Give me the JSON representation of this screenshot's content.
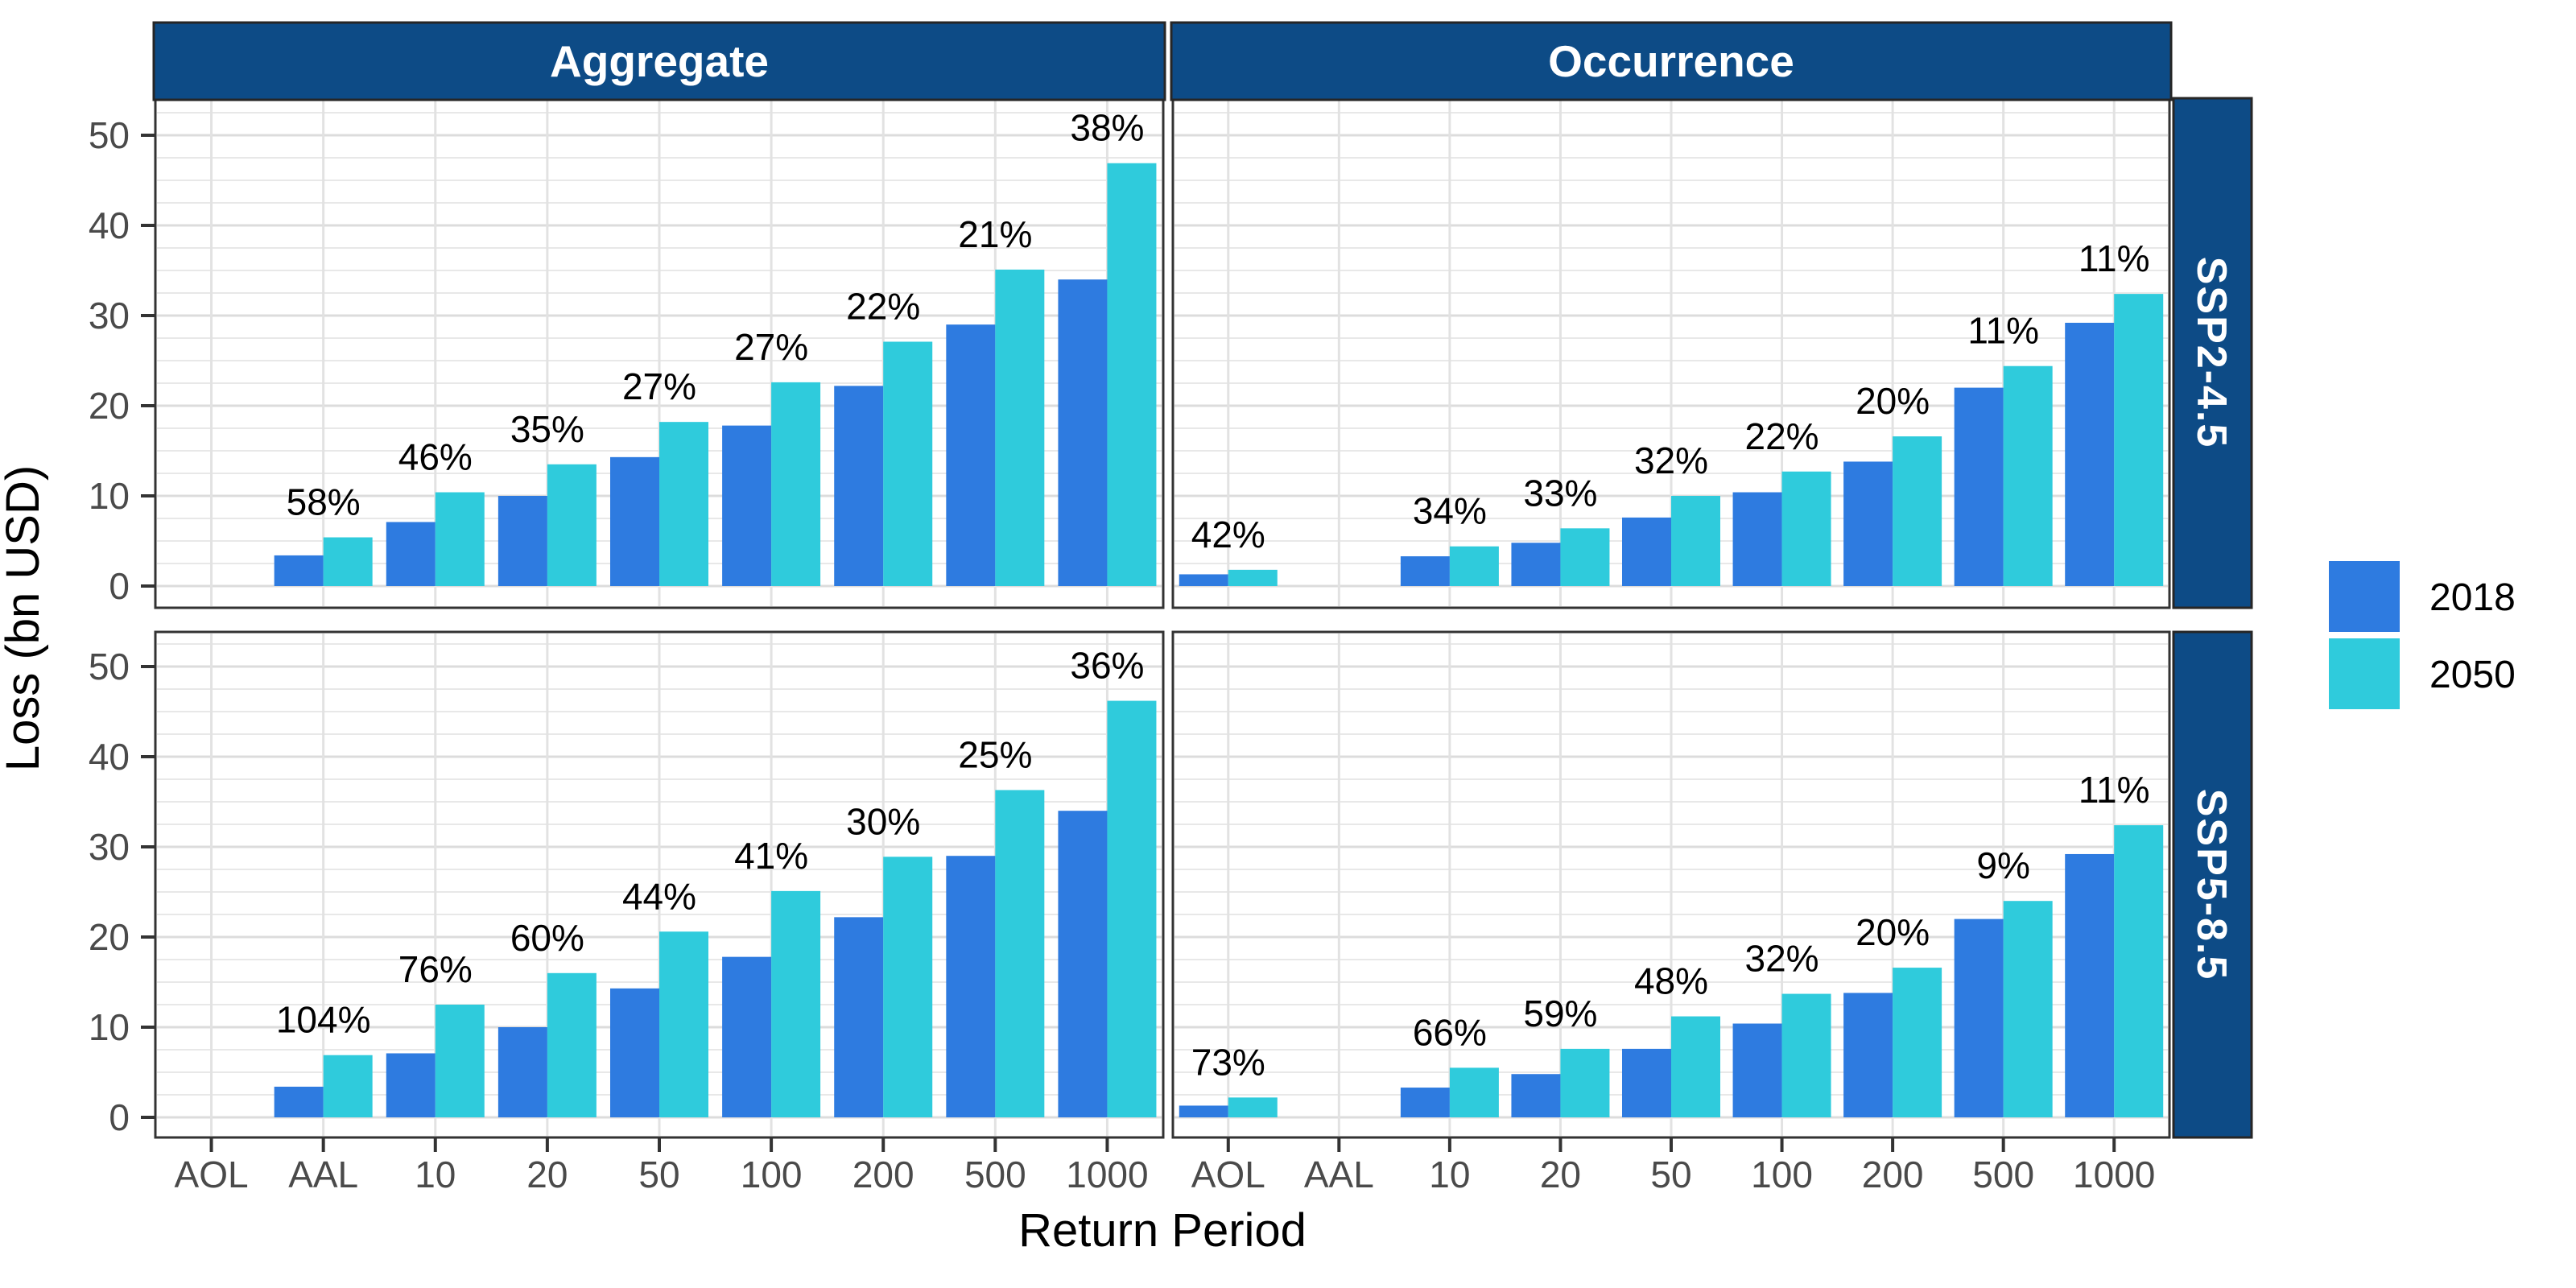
{
  "axes": {
    "x_title": "Return Period",
    "y_title": "Loss (bn USD)",
    "x_categories": [
      "AOL",
      "AAL",
      "10",
      "20",
      "50",
      "100",
      "200",
      "500",
      "1000"
    ],
    "y_ticks": [
      0,
      10,
      20,
      30,
      40,
      50
    ]
  },
  "facets": {
    "columns": [
      "Aggregate",
      "Occurrence"
    ],
    "rows": [
      "SSP2-4.5",
      "SSP5-8.5"
    ]
  },
  "legend": {
    "entries": [
      {
        "label": "2018",
        "color": "#2E7BE0"
      },
      {
        "label": "2050",
        "color": "#2FCBDC"
      }
    ]
  },
  "colors": {
    "strip_bg": "#0D4B86",
    "strip_text": "#FFFFFF",
    "bar_2018": "#2E7BE0",
    "bar_2050": "#2FCBDC",
    "grid_minor": "#E8E8E8",
    "grid_major": "#DCDCDC",
    "grid_vertical": "#E2E2E2",
    "panel_border": "#333333",
    "tick_mark": "#333333",
    "tick_text": "#4A4A4A"
  },
  "chart_data": {
    "type": "bar",
    "title": "",
    "xlabel": "Return Period",
    "ylabel": "Loss (bn USD)",
    "ylim": [
      0,
      50
    ],
    "y_ticks": [
      0,
      10,
      20,
      30,
      40,
      50
    ],
    "grid": true,
    "legend_position": "right",
    "categories": [
      "AOL",
      "AAL",
      "10",
      "20",
      "50",
      "100",
      "200",
      "500",
      "1000"
    ],
    "series_names": [
      "2018",
      "2050"
    ],
    "panels": [
      {
        "facet_col": "Aggregate",
        "facet_row": "SSP2-4.5",
        "series": [
          {
            "name": "2018",
            "values": [
              null,
              3.4,
              7.1,
              10.0,
              14.3,
              17.8,
              22.2,
              29.0,
              34.0
            ]
          },
          {
            "name": "2050",
            "values": [
              null,
              5.4,
              10.4,
              13.5,
              18.2,
              22.6,
              27.1,
              35.1,
              46.9
            ]
          }
        ],
        "pct_labels": [
          null,
          "58%",
          "46%",
          "35%",
          "27%",
          "27%",
          "22%",
          "21%",
          "38%"
        ]
      },
      {
        "facet_col": "Occurrence",
        "facet_row": "SSP2-4.5",
        "series": [
          {
            "name": "2018",
            "values": [
              1.3,
              null,
              3.3,
              4.8,
              7.6,
              10.4,
              13.8,
              22.0,
              29.2
            ]
          },
          {
            "name": "2050",
            "values": [
              1.8,
              null,
              4.4,
              6.4,
              10.0,
              12.7,
              16.6,
              24.4,
              32.4
            ]
          }
        ],
        "pct_labels": [
          "42%",
          null,
          "34%",
          "33%",
          "32%",
          "22%",
          "20%",
          "11%",
          "11%"
        ]
      },
      {
        "facet_col": "Aggregate",
        "facet_row": "SSP5-8.5",
        "series": [
          {
            "name": "2018",
            "values": [
              null,
              3.4,
              7.1,
              10.0,
              14.3,
              17.8,
              22.2,
              29.0,
              34.0
            ]
          },
          {
            "name": "2050",
            "values": [
              null,
              6.9,
              12.5,
              16.0,
              20.6,
              25.1,
              28.9,
              36.3,
              46.2
            ]
          }
        ],
        "pct_labels": [
          null,
          "104%",
          "76%",
          "60%",
          "44%",
          "41%",
          "30%",
          "25%",
          "36%"
        ]
      },
      {
        "facet_col": "Occurrence",
        "facet_row": "SSP5-8.5",
        "series": [
          {
            "name": "2018",
            "values": [
              1.3,
              null,
              3.3,
              4.8,
              7.6,
              10.4,
              13.8,
              22.0,
              29.2
            ]
          },
          {
            "name": "2050",
            "values": [
              2.2,
              null,
              5.5,
              7.6,
              11.2,
              13.7,
              16.6,
              24.0,
              32.4
            ]
          }
        ],
        "pct_labels": [
          "73%",
          null,
          "66%",
          "59%",
          "48%",
          "32%",
          "20%",
          "9%",
          "11%"
        ]
      }
    ]
  }
}
